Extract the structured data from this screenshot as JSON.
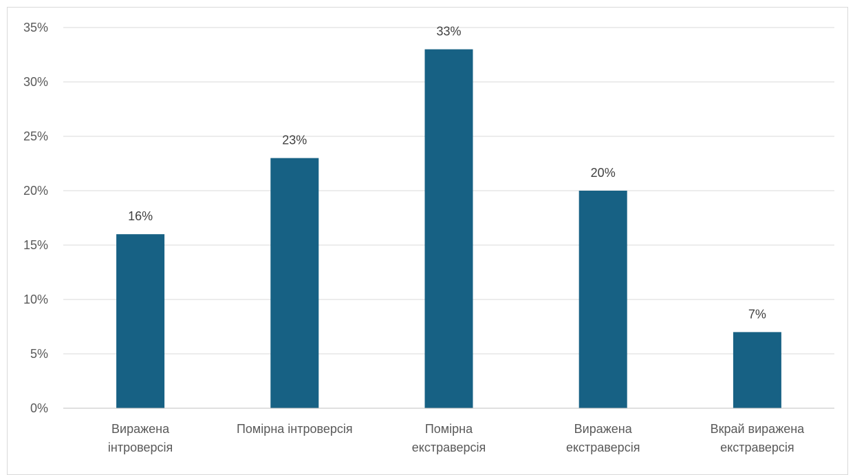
{
  "chart_data": {
    "type": "bar",
    "title": "",
    "xlabel": "",
    "ylabel": "",
    "categories": [
      [
        "Виражена",
        "інтроверсія"
      ],
      [
        "Помірна інтроверсія"
      ],
      [
        "Помірна",
        "екстраверсія"
      ],
      [
        "Виражена",
        "екстраверсія"
      ],
      [
        "Вкрай виражена",
        "екстраверсія"
      ]
    ],
    "values": [
      16,
      23,
      33,
      20,
      7
    ],
    "data_labels": [
      "16%",
      "23%",
      "33%",
      "20%",
      "7%"
    ],
    "ylim": [
      0,
      35
    ],
    "yticks": [
      0,
      5,
      10,
      15,
      20,
      25,
      30,
      35
    ],
    "ytick_labels": [
      "0%",
      "5%",
      "10%",
      "15%",
      "20%",
      "25%",
      "30%",
      "35%"
    ],
    "grid": true,
    "legend": "none",
    "colors": {
      "bar": "#176184",
      "grid": "#d9d9d9",
      "axis": "#bfbfbf"
    }
  }
}
